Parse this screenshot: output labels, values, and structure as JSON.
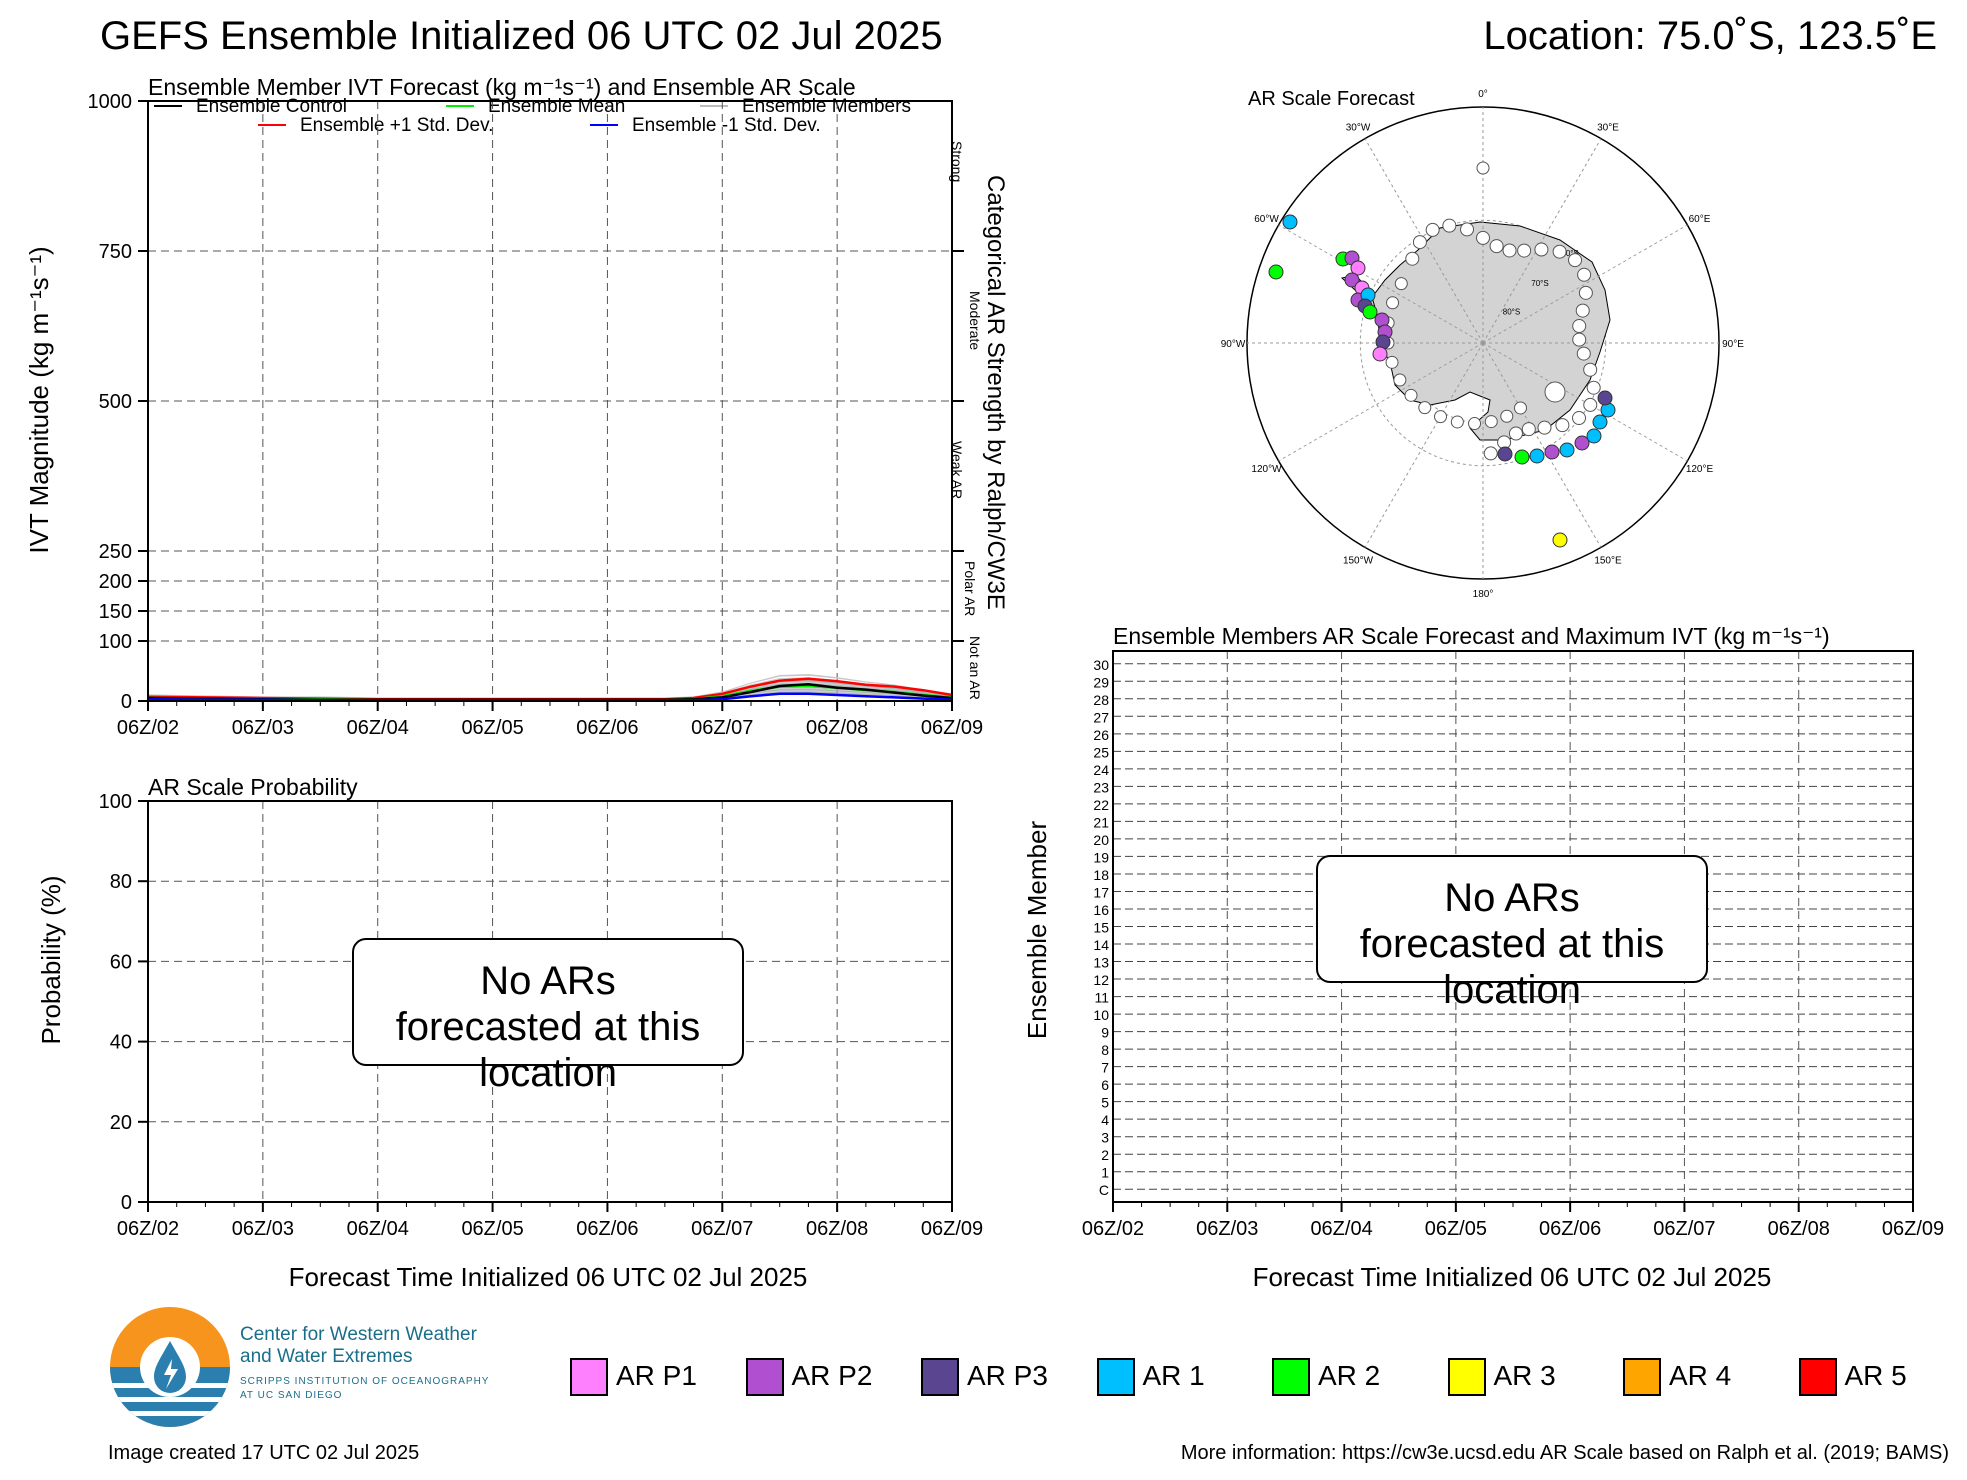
{
  "header": {
    "title": "GEFS Ensemble Initialized 06 UTC 02 Jul 2025",
    "location": "Location: 75.0˚S, 123.5˚E"
  },
  "x_ticks": [
    "06Z/02",
    "06Z/03",
    "06Z/04",
    "06Z/05",
    "06Z/06",
    "06Z/07",
    "06Z/08",
    "06Z/09"
  ],
  "x_label": "Forecast Time Initialized 06 UTC 02 Jul 2025",
  "chart_data": [
    {
      "type": "line",
      "title": "Ensemble Member IVT Forecast (kg m⁻¹s⁻¹) and Ensemble AR Scale",
      "ylabel": "IVT Magnitude (kg m⁻¹s⁻¹)",
      "right_label": "Categorical AR Strength by Ralph/CW3E",
      "ylim": [
        0,
        1000
      ],
      "y_ticks": [
        0,
        100,
        150,
        200,
        250,
        500,
        750,
        1000
      ],
      "categories_right": [
        "Strong",
        "Moderate",
        "Weak AR",
        "Polar AR",
        "Not an AR"
      ],
      "legend": [
        "Ensemble Control",
        "Ensemble Mean",
        "Ensemble Members",
        "Ensemble +1 Std. Dev.",
        "Ensemble -1 Std. Dev."
      ],
      "x_hours": [
        0,
        12,
        24,
        36,
        48,
        60,
        72,
        84,
        96,
        108,
        114,
        120,
        126,
        132,
        138,
        144,
        150,
        156,
        162,
        168
      ],
      "series": [
        {
          "name": "Ensemble +1 Std. Dev.",
          "color": "#ff0000",
          "values": [
            7,
            6,
            5,
            4,
            3,
            3,
            3,
            3,
            3,
            3,
            5,
            12,
            24,
            34,
            37,
            33,
            27,
            24,
            18,
            10
          ]
        },
        {
          "name": "Ensemble Mean",
          "color": "#00ee00",
          "values": [
            5,
            4,
            3,
            3,
            2,
            2,
            2,
            2,
            2,
            2,
            3,
            8,
            17,
            24,
            25,
            22,
            18,
            15,
            10,
            6
          ]
        },
        {
          "name": "Ensemble Control",
          "color": "#000000",
          "values": [
            5,
            4,
            3,
            2,
            2,
            2,
            2,
            2,
            2,
            2,
            3,
            6,
            15,
            25,
            28,
            22,
            19,
            14,
            9,
            5
          ]
        },
        {
          "name": "Ensemble -1 Std. Dev.",
          "color": "#0000ff",
          "values": [
            3,
            2,
            2,
            1,
            1,
            1,
            1,
            1,
            1,
            1,
            1,
            3,
            8,
            12,
            12,
            10,
            8,
            6,
            4,
            2
          ]
        }
      ]
    },
    {
      "type": "line",
      "title": "AR Scale Probability",
      "ylabel": "Probability (%)",
      "ylim": [
        0,
        100
      ],
      "y_ticks": [
        0,
        20,
        40,
        60,
        80,
        100
      ],
      "note": "No ARs forecasted at this location",
      "series": []
    },
    {
      "type": "heatmap",
      "title": "Ensemble Members AR Scale Forecast and Maximum IVT (kg m⁻¹s⁻¹)",
      "ylabel": "Ensemble Member",
      "y_ticks": [
        "C",
        "1",
        "2",
        "3",
        "4",
        "5",
        "6",
        "7",
        "8",
        "9",
        "10",
        "11",
        "12",
        "13",
        "14",
        "15",
        "16",
        "17",
        "18",
        "19",
        "20",
        "21",
        "22",
        "23",
        "24",
        "25",
        "26",
        "27",
        "28",
        "29",
        "30"
      ],
      "note": "No ARs forecasted at this location",
      "values": []
    }
  ],
  "map": {
    "title": "AR Scale Forecast",
    "lon_labels": [
      "0°",
      "30°E",
      "60°E",
      "90°E",
      "120°E",
      "150°E",
      "180°",
      "150°W",
      "120°W",
      "90°W",
      "60°W",
      "30°W"
    ],
    "lat_labels": [
      "60°S",
      "70°S",
      "80°S"
    ]
  },
  "legend_scale": [
    {
      "label": "AR P1",
      "color": "#ff80ff"
    },
    {
      "label": "AR P2",
      "color": "#b050d0"
    },
    {
      "label": "AR P3",
      "color": "#5a4690"
    },
    {
      "label": "AR 1",
      "color": "#00bfff"
    },
    {
      "label": "AR 2",
      "color": "#00ff00"
    },
    {
      "label": "AR 3",
      "color": "#ffff00"
    },
    {
      "label": "AR 4",
      "color": "#ffa500"
    },
    {
      "label": "AR 5",
      "color": "#ff0000"
    }
  ],
  "org": {
    "line1": "Center for Western Weather",
    "line2": "and Water Extremes",
    "line3": "SCRIPPS INSTITUTION OF OCEANOGRAPHY",
    "line4": "AT UC SAN DIEGO"
  },
  "footer": {
    "created": "Image created 17 UTC 02 Jul 2025",
    "info": "More information: https://cw3e.ucsd.edu AR Scale based on Ralph et al. (2019; BAMS)"
  }
}
